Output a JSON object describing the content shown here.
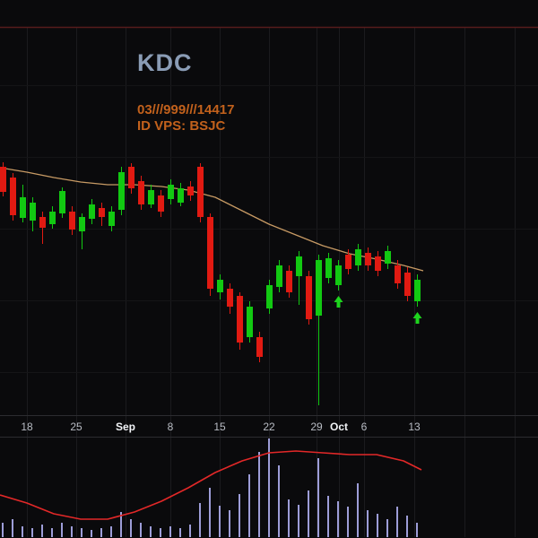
{
  "header": {
    "symbol": "KDC",
    "info_line1": "03///999///14417",
    "info_line2": "ID VPS: BSJC"
  },
  "colors": {
    "background": "#0a0a0c",
    "grid": "#1b1b1e",
    "hgrid": "#151517",
    "top_line": "#561c1c",
    "separator": "#2c2c30",
    "up": "#12c912",
    "down": "#e11a12",
    "ma": "#c79a64",
    "volume_bar": "#9d9dd8",
    "volume_ma": "#e22828",
    "axis_text": "#b8bcc4",
    "axis_text_bold": "#f2f4f7",
    "symbol_text": "#8a9cb5",
    "info_text": "#c2611c",
    "arrow": "#1ed41e"
  },
  "chart_data": {
    "type": "candlestick",
    "title": "KDC",
    "y_axis_visible": false,
    "ylim": [
      0,
      433
    ],
    "x_axis": {
      "ticks": [
        {
          "x": 30,
          "label": "18",
          "bold": false
        },
        {
          "x": 85,
          "label": "25",
          "bold": false
        },
        {
          "x": 140,
          "label": "Sep",
          "bold": true
        },
        {
          "x": 190,
          "label": "8",
          "bold": false
        },
        {
          "x": 245,
          "label": "15",
          "bold": false
        },
        {
          "x": 300,
          "label": "22",
          "bold": false
        },
        {
          "x": 353,
          "label": "29",
          "bold": false
        },
        {
          "x": 378,
          "label": "Oct",
          "bold": true
        },
        {
          "x": 406,
          "label": "6",
          "bold": false
        },
        {
          "x": 462,
          "label": "13",
          "bold": false
        }
      ],
      "unlabeled_gridlines": [
        518,
        574
      ]
    },
    "hgrid_y": [
      95,
      175,
      255,
      335,
      415
    ],
    "columns": [
      "open",
      "high",
      "low",
      "close"
    ],
    "ohlc": [
      [
        277,
        282,
        244,
        249
      ],
      [
        265,
        270,
        217,
        223
      ],
      [
        220,
        257,
        215,
        243
      ],
      [
        217,
        243,
        205,
        237
      ],
      [
        221,
        227,
        191,
        209
      ],
      [
        213,
        233,
        208,
        227
      ],
      [
        225,
        254,
        220,
        250
      ],
      [
        227,
        233,
        201,
        207
      ],
      [
        205,
        225,
        185,
        221
      ],
      [
        219,
        241,
        213,
        235
      ],
      [
        231,
        237,
        211,
        221
      ],
      [
        211,
        233,
        205,
        227
      ],
      [
        229,
        277,
        223,
        271
      ],
      [
        277,
        281,
        247,
        253
      ],
      [
        261,
        267,
        229,
        235
      ],
      [
        235,
        257,
        231,
        251
      ],
      [
        245,
        251,
        221,
        227
      ],
      [
        241,
        263,
        235,
        257
      ],
      [
        237,
        259,
        233,
        253
      ],
      [
        255,
        261,
        239,
        245
      ],
      [
        277,
        281,
        215,
        221
      ],
      [
        221,
        225,
        133,
        141
      ],
      [
        137,
        157,
        129,
        151
      ],
      [
        141,
        147,
        113,
        121
      ],
      [
        133,
        137,
        73,
        81
      ],
      [
        87,
        127,
        81,
        121
      ],
      [
        87,
        93,
        59,
        65
      ],
      [
        119,
        151,
        113,
        145
      ],
      [
        143,
        173,
        137,
        167
      ],
      [
        161,
        167,
        131,
        137
      ],
      [
        155,
        183,
        123,
        177
      ],
      [
        155,
        161,
        101,
        107
      ],
      [
        111,
        179,
        11,
        173
      ],
      [
        153,
        181,
        147,
        175
      ],
      [
        145,
        173,
        139,
        167
      ],
      [
        179,
        185,
        157,
        163
      ],
      [
        167,
        191,
        161,
        185
      ],
      [
        181,
        187,
        161,
        167
      ],
      [
        177,
        183,
        155,
        161
      ],
      [
        169,
        189,
        163,
        183
      ],
      [
        167,
        173,
        141,
        147
      ],
      [
        159,
        165,
        127,
        133
      ],
      [
        127,
        157,
        121,
        151
      ]
    ],
    "ma_overlay": {
      "x": [
        0,
        30,
        60,
        90,
        120,
        150,
        180,
        210,
        240,
        270,
        300,
        330,
        360,
        390,
        420,
        450,
        472
      ],
      "values": [
        276,
        271,
        265,
        260,
        257,
        257,
        255,
        251,
        243,
        228,
        213,
        201,
        189,
        180,
        174,
        167,
        161
      ]
    },
    "signals": [
      {
        "type": "up-arrow",
        "candle_index": 34
      },
      {
        "type": "up-arrow",
        "candle_index": 42
      }
    ],
    "volume_panel": {
      "type": "bar",
      "values": [
        16,
        20,
        12,
        10,
        14,
        10,
        16,
        12,
        10,
        8,
        10,
        12,
        28,
        20,
        16,
        12,
        10,
        12,
        10,
        14,
        38,
        55,
        35,
        30,
        48,
        70,
        95,
        110,
        80,
        42,
        36,
        52,
        88,
        46,
        40,
        34,
        60,
        30,
        26,
        20,
        34,
        24,
        16
      ],
      "ma": {
        "x": [
          0,
          30,
          60,
          90,
          120,
          150,
          180,
          210,
          240,
          270,
          300,
          330,
          360,
          390,
          420,
          450,
          470
        ],
        "values": [
          47,
          38,
          26,
          20,
          20,
          28,
          40,
          55,
          72,
          85,
          94,
          96,
          94,
          92,
          92,
          85,
          75
        ]
      }
    }
  }
}
